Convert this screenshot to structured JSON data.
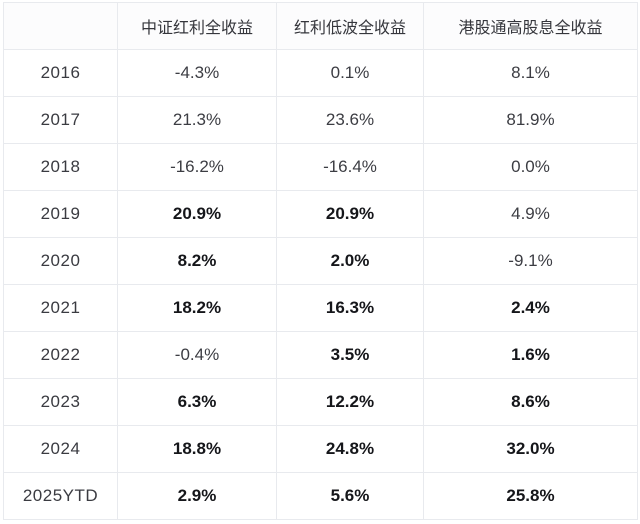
{
  "chart_data": {
    "type": "table",
    "columns": [
      "",
      "中证红利全收益",
      "红利低波全收益",
      "港股通高股息全收益"
    ],
    "rows": [
      {
        "year": "2016",
        "values": [
          "-4.3%",
          "0.1%",
          "8.1%"
        ],
        "bold": [
          false,
          false,
          false
        ]
      },
      {
        "year": "2017",
        "values": [
          "21.3%",
          "23.6%",
          "81.9%"
        ],
        "bold": [
          false,
          false,
          false
        ]
      },
      {
        "year": "2018",
        "values": [
          "-16.2%",
          "-16.4%",
          "0.0%"
        ],
        "bold": [
          false,
          false,
          false
        ]
      },
      {
        "year": "2019",
        "values": [
          "20.9%",
          "20.9%",
          "4.9%"
        ],
        "bold": [
          true,
          true,
          false
        ]
      },
      {
        "year": "2020",
        "values": [
          "8.2%",
          "2.0%",
          "-9.1%"
        ],
        "bold": [
          true,
          true,
          false
        ]
      },
      {
        "year": "2021",
        "values": [
          "18.2%",
          "16.3%",
          "2.4%"
        ],
        "bold": [
          true,
          true,
          true
        ]
      },
      {
        "year": "2022",
        "values": [
          "-0.4%",
          "3.5%",
          "1.6%"
        ],
        "bold": [
          false,
          true,
          true
        ]
      },
      {
        "year": "2023",
        "values": [
          "6.3%",
          "12.2%",
          "8.6%"
        ],
        "bold": [
          true,
          true,
          true
        ]
      },
      {
        "year": "2024",
        "values": [
          "18.8%",
          "24.8%",
          "32.0%"
        ],
        "bold": [
          true,
          true,
          true
        ]
      },
      {
        "year": "2025YTD",
        "values": [
          "2.9%",
          "5.6%",
          "25.8%"
        ],
        "bold": [
          true,
          true,
          true
        ]
      }
    ]
  },
  "colors": {
    "background": "#ffffff",
    "grid_line": "#e8eaee",
    "outer_border": "#d7dadf",
    "text_normal": "#3c3d43",
    "text_bold": "#15161a"
  }
}
